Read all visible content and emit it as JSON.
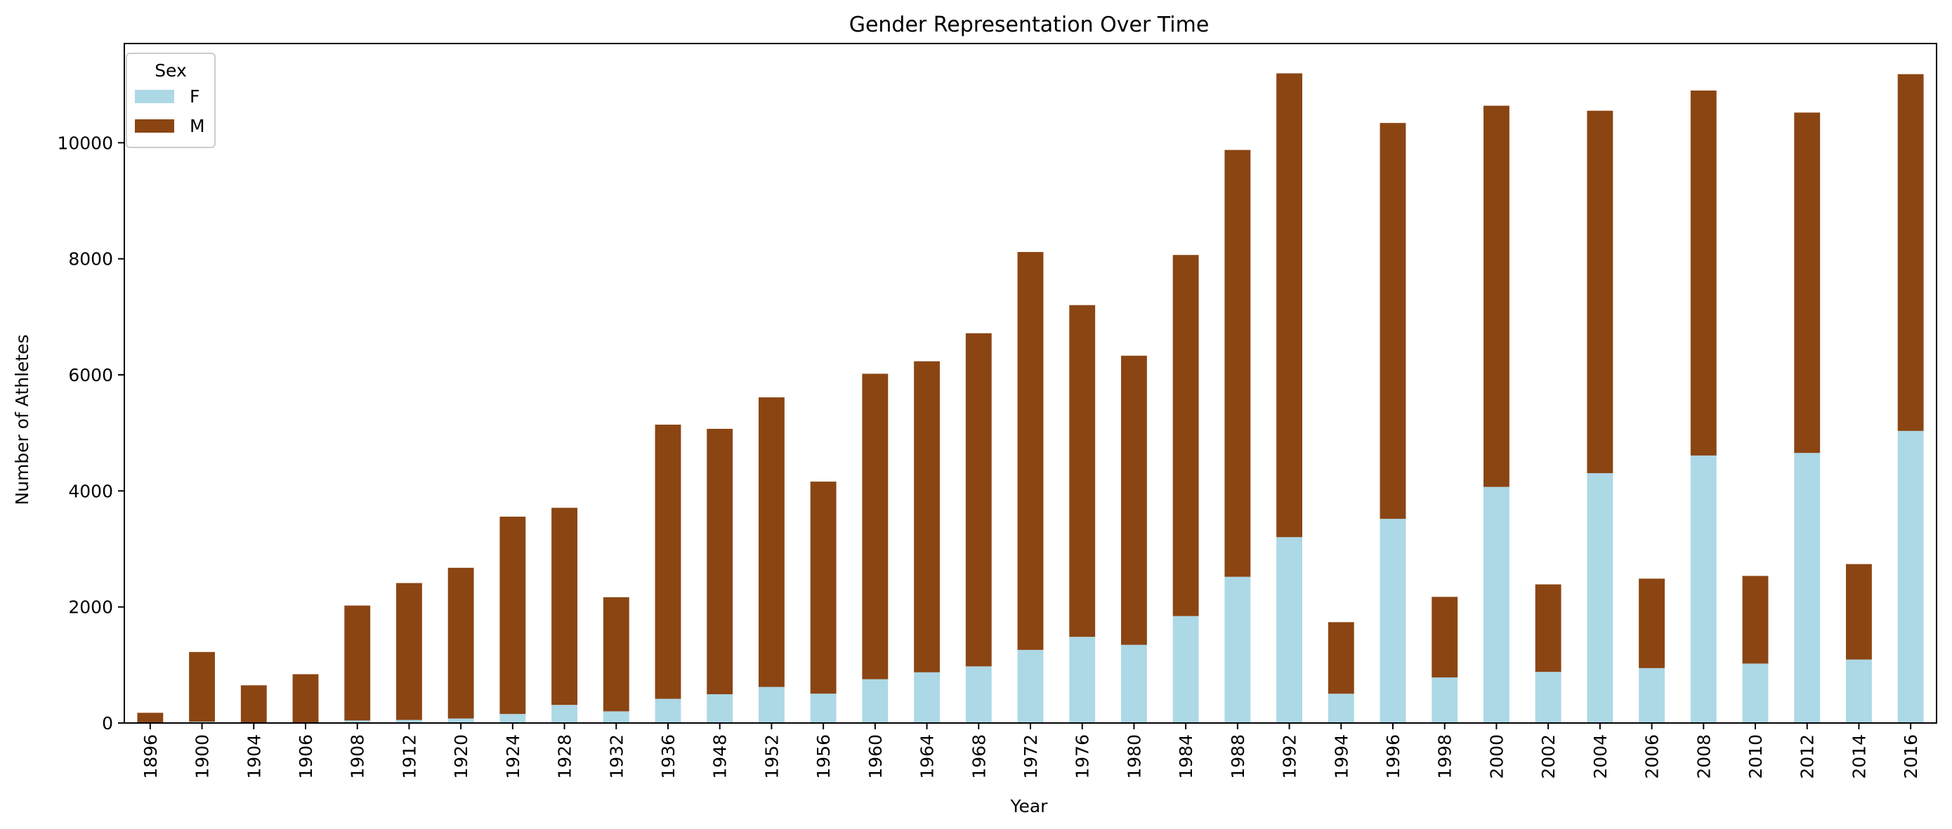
{
  "chart_data": {
    "type": "bar",
    "stacked": true,
    "title": "Gender Representation Over Time",
    "xlabel": "Year",
    "ylabel": "Number of Athletes",
    "categories": [
      "1896",
      "1900",
      "1904",
      "1906",
      "1908",
      "1912",
      "1920",
      "1924",
      "1928",
      "1932",
      "1936",
      "1948",
      "1952",
      "1956",
      "1960",
      "1964",
      "1968",
      "1972",
      "1976",
      "1980",
      "1984",
      "1988",
      "1992",
      "1994",
      "1996",
      "1998",
      "2000",
      "2002",
      "2004",
      "2006",
      "2008",
      "2010",
      "2012",
      "2014",
      "2016"
    ],
    "series": [
      {
        "name": "F",
        "color": "#add8e6",
        "values": [
          0,
          23,
          6,
          6,
          44,
          53,
          78,
          156,
          312,
          201,
          417,
          496,
          622,
          506,
          755,
          874,
          976,
          1260,
          1485,
          1347,
          1843,
          2520,
          3203,
          505,
          3519,
          785,
          4069,
          881,
          4306,
          946,
          4610,
          1024,
          4654,
          1094,
          5034
        ]
      },
      {
        "name": "M",
        "color": "#8b4513",
        "values": [
          176,
          1201,
          644,
          835,
          1980,
          2359,
          2597,
          3400,
          3397,
          1967,
          4725,
          4574,
          4990,
          3654,
          5264,
          5360,
          5741,
          6857,
          5717,
          4983,
          6223,
          7356,
          7993,
          1233,
          6822,
          1389,
          6569,
          1508,
          6246,
          1542,
          6290,
          1511,
          5866,
          1645,
          6148
        ]
      }
    ],
    "ylim": [
      0,
      11710
    ],
    "yticks": [
      0,
      2000,
      4000,
      6000,
      8000,
      10000
    ],
    "grid": false,
    "legend": {
      "title": "Sex",
      "position": "top-left",
      "entries": [
        "F",
        "M"
      ]
    }
  }
}
